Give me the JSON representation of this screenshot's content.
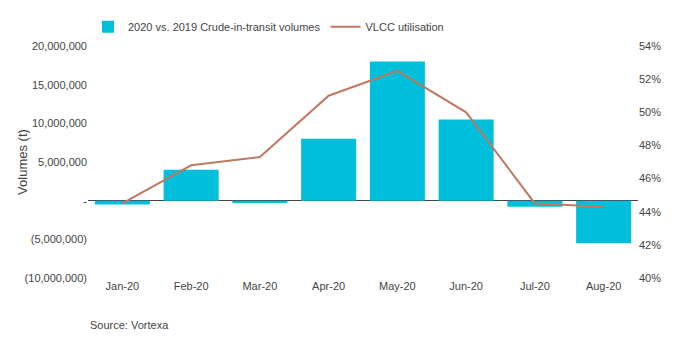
{
  "chart_data": {
    "type": "bar",
    "categories": [
      "Jan-20",
      "Feb-20",
      "Mar-20",
      "Apr-20",
      "May-20",
      "Jun-20",
      "Jul-20",
      "Aug-20"
    ],
    "series": [
      {
        "name": "2020 vs. 2019 Crude-in-transit volumes",
        "type": "bar",
        "color": "#00BFDB",
        "values": [
          -500000,
          4000000,
          -300000,
          8000000,
          18000000,
          10500000,
          -800000,
          -5500000
        ]
      },
      {
        "name": "VLCC utilisation",
        "type": "line",
        "color": "#C07860",
        "axis": "y2",
        "values": [
          0.445,
          0.468,
          0.473,
          0.51,
          0.525,
          0.5,
          0.445,
          0.443
        ]
      }
    ],
    "ylabel": "Volumes (t)",
    "ylim": [
      -10000000,
      20000000
    ],
    "yticks": [
      {
        "value": -10000000,
        "label": "(10,000,000)"
      },
      {
        "value": -5000000,
        "label": "(5,000,000)"
      },
      {
        "value": 0,
        "label": "-"
      },
      {
        "value": 5000000,
        "label": "5,000,000"
      },
      {
        "value": 10000000,
        "label": "10,000,000"
      },
      {
        "value": 15000000,
        "label": "15,000,000"
      },
      {
        "value": 20000000,
        "label": "20,000,000"
      }
    ],
    "y2lim": [
      0.4,
      0.54
    ],
    "y2ticks": [
      {
        "value": 0.4,
        "label": "40%"
      },
      {
        "value": 0.42,
        "label": "42%"
      },
      {
        "value": 0.44,
        "label": "44%"
      },
      {
        "value": 0.46,
        "label": "46%"
      },
      {
        "value": 0.48,
        "label": "48%"
      },
      {
        "value": 0.5,
        "label": "50%"
      },
      {
        "value": 0.52,
        "label": "52%"
      },
      {
        "value": 0.54,
        "label": "54%"
      }
    ],
    "grid": false,
    "legend": "upper left",
    "annotations": [
      "Source: Vortexa"
    ]
  }
}
